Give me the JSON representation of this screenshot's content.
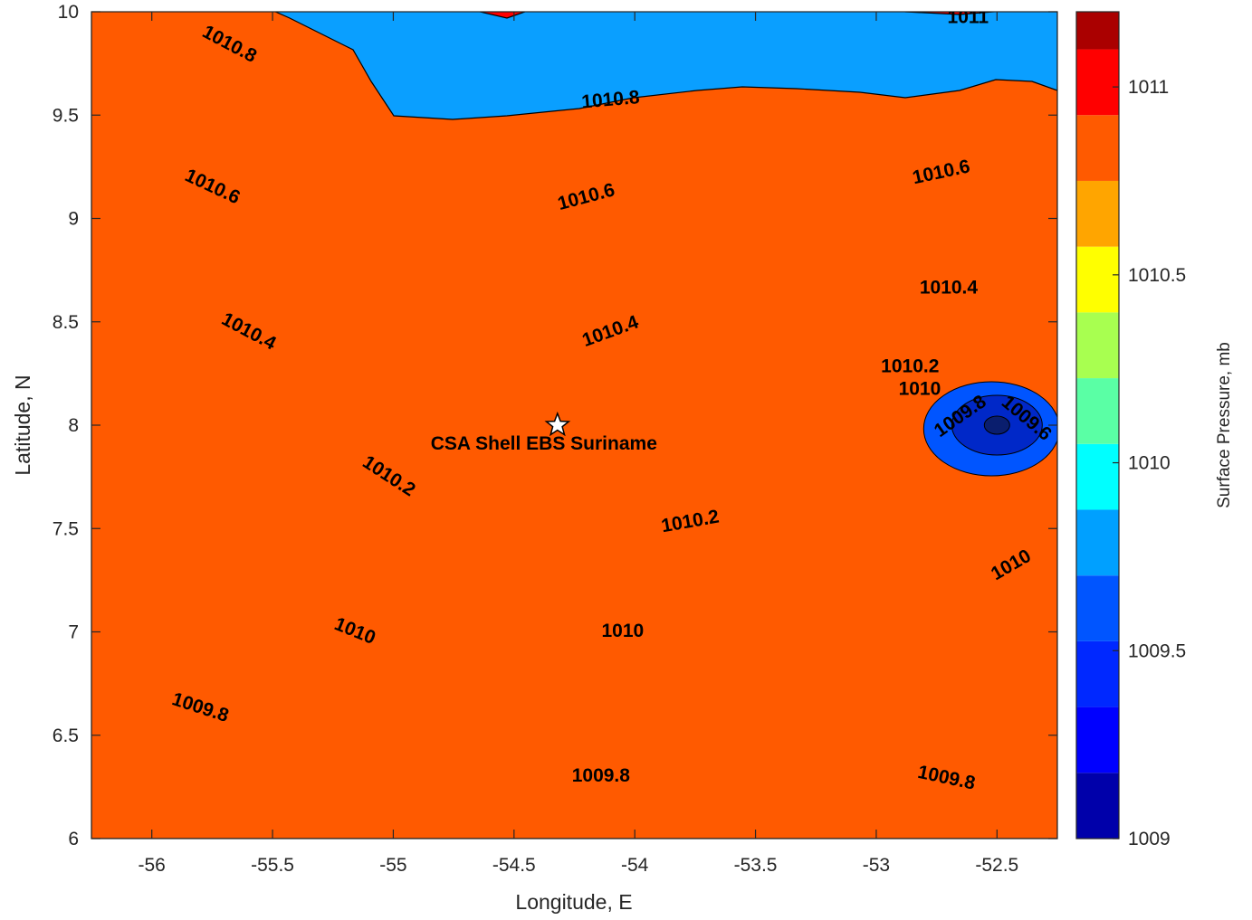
{
  "chart_data": {
    "type": "contour",
    "xlabel": "Longitude, E",
    "ylabel": "Latitude, N",
    "xlim": [
      -56.25,
      -52.25
    ],
    "ylim": [
      6,
      10
    ],
    "xticks": [
      -56,
      -55.5,
      -55,
      -54.5,
      -54,
      -53.5,
      -53,
      -52.5
    ],
    "yticks": [
      6,
      6.5,
      7,
      7.5,
      8,
      8.5,
      9,
      9.5,
      10
    ],
    "colorbar": {
      "label": "Surface Pressure, mb",
      "min": 1009,
      "max": 1011.2,
      "ticks": [
        1009,
        1009.5,
        1010,
        1010.5,
        1011
      ],
      "levels": [
        1009,
        1009.1,
        1009.2,
        1009.3,
        1009.4,
        1009.5,
        1009.6,
        1009.7,
        1009.8,
        1009.9,
        1010,
        1010.1,
        1010.2,
        1010.3,
        1010.4,
        1010.5,
        1010.6,
        1010.7,
        1010.8,
        1010.9,
        1011,
        1011.1,
        1011.2
      ]
    },
    "bands": [
      {
        "level": 1009.8,
        "color": "#0A9FFF"
      },
      {
        "level": 1009.9,
        "color": "#00FFFF"
      },
      {
        "level": 1010.1,
        "color": "#5AFFA5"
      },
      {
        "level": 1010.3,
        "color": "#A8FF50"
      },
      {
        "level": 1010.5,
        "color": "#FFFF00"
      },
      {
        "level": 1010.7,
        "color": "#FFA500"
      },
      {
        "level": 1010.9,
        "color": "#FF5A00"
      },
      {
        "level": 1011.1,
        "color": "#FF0000"
      }
    ],
    "low_center": {
      "lon": -52.5,
      "lat": 8.0,
      "colors": [
        "#0055FF",
        "#0028C8",
        "#0A1E6E"
      ]
    },
    "contour_labels": [
      {
        "text": "1010.8",
        "lon": -55.68,
        "lat": 9.84,
        "angle": 28
      },
      {
        "text": "1010.8",
        "lon": -54.1,
        "lat": 9.57,
        "angle": -5
      },
      {
        "text": "1011",
        "lon": -52.62,
        "lat": 9.97,
        "angle": 0
      },
      {
        "text": "1010.6",
        "lon": -55.75,
        "lat": 9.15,
        "angle": 25
      },
      {
        "text": "1010.6",
        "lon": -54.2,
        "lat": 9.1,
        "angle": -15
      },
      {
        "text": "1010.6",
        "lon": -52.73,
        "lat": 9.22,
        "angle": -12
      },
      {
        "text": "1010.4",
        "lon": -55.6,
        "lat": 8.45,
        "angle": 28
      },
      {
        "text": "1010.4",
        "lon": -54.1,
        "lat": 8.45,
        "angle": -20
      },
      {
        "text": "1010.4",
        "lon": -52.7,
        "lat": 8.66,
        "angle": 0
      },
      {
        "text": "1010.2",
        "lon": -52.86,
        "lat": 8.28,
        "angle": 0
      },
      {
        "text": "1010.2",
        "lon": -55.02,
        "lat": 7.75,
        "angle": 33
      },
      {
        "text": "1010.2",
        "lon": -53.77,
        "lat": 7.53,
        "angle": -10
      },
      {
        "text": "1010",
        "lon": -52.82,
        "lat": 8.17,
        "angle": 0
      },
      {
        "text": "1010",
        "lon": -52.44,
        "lat": 7.32,
        "angle": -30
      },
      {
        "text": "1010",
        "lon": -55.16,
        "lat": 7.0,
        "angle": 22
      },
      {
        "text": "1010",
        "lon": -54.05,
        "lat": 7.0,
        "angle": 0
      },
      {
        "text": "1009.8",
        "lon": -55.8,
        "lat": 6.63,
        "angle": 18
      },
      {
        "text": "1009.8",
        "lon": -54.14,
        "lat": 6.3,
        "angle": 0
      },
      {
        "text": "1009.8",
        "lon": -52.71,
        "lat": 6.29,
        "angle": 12
      },
      {
        "text": "1009.8",
        "lon": -52.65,
        "lat": 8.04,
        "angle": -35
      },
      {
        "text": "1009.6",
        "lon": -52.38,
        "lat": 8.03,
        "angle": 40
      }
    ],
    "annotations": [
      {
        "text": "CSA Shell EBS Suriname",
        "lon": -54.32,
        "lat": 8.0,
        "marker": "star"
      }
    ]
  }
}
